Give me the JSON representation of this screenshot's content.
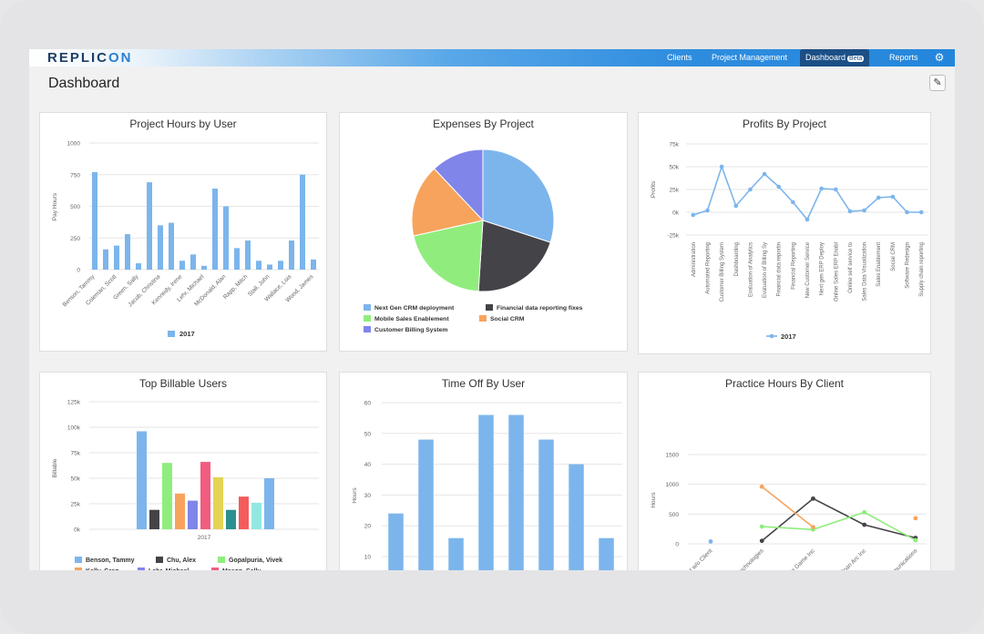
{
  "app": {
    "logo_left": "REPLIC",
    "logo_right": "ON",
    "nav": {
      "clients": "Clients",
      "project_management": "Project Management",
      "dashboard": "Dashboard",
      "dashboard_badge": "Beta",
      "reports": "Reports"
    },
    "page_title": "Dashboard",
    "colors": {
      "bar_blue": "#7cb5ec",
      "topbar": "#2486db"
    }
  },
  "panels": {
    "project_hours": {
      "title": "Project Hours by User"
    },
    "expenses": {
      "title": "Expenses By Project"
    },
    "profits": {
      "title": "Profits By Project"
    },
    "billable": {
      "title": "Top Billable Users"
    },
    "timeoff": {
      "title": "Time Off By User"
    },
    "practice": {
      "title": "Practice Hours By Client"
    }
  },
  "chart_data": [
    {
      "id": "project_hours",
      "type": "bar",
      "title": "Project Hours by User",
      "ylabel": "Pay Hours",
      "ylim": [
        0,
        1000
      ],
      "yticks": [
        "0",
        "250",
        "500",
        "750",
        "1000"
      ],
      "categories": [
        "Benson, Tammy",
        "",
        "Coleman, Scott",
        "",
        "Green, Sally",
        "",
        "Jacob, Christina",
        "",
        "Kennedy, Irene",
        "",
        "Lehr, Michael",
        "",
        "McDonald, Alan",
        "",
        "Rapp, Mitch",
        "",
        "Stall, John",
        "",
        "Wallace, Lois",
        "",
        "Wood, James"
      ],
      "x_labels": [
        "Benson, Tammy",
        "Coleman, Scott",
        "Green, Sally",
        "Jacob, Christina",
        "Kennedy, Irene",
        "Lehr, Michael",
        "McDonald, Alan",
        "Rapp, Mitch",
        "Stall, John",
        "Wallace, Lois",
        "Wood, James"
      ],
      "series": [
        {
          "name": "2017",
          "values": [
            770,
            160,
            190,
            280,
            50,
            690,
            350,
            370,
            70,
            120,
            30,
            640,
            500,
            170,
            230,
            70,
            40,
            70,
            230,
            750,
            80
          ]
        }
      ],
      "legend": [
        "2017"
      ]
    },
    {
      "id": "expenses",
      "type": "pie",
      "title": "Expenses By Project",
      "slices": [
        {
          "name": "Next Gen CRM deployment",
          "value": 30,
          "color": "#7cb5ec"
        },
        {
          "name": "Financial data reporting fixes",
          "value": 21,
          "color": "#434348"
        },
        {
          "name": "Mobile Sales Enablement",
          "value": 20.5,
          "color": "#90ed7d"
        },
        {
          "name": "Social CRM",
          "value": 16.5,
          "color": "#f7a35c"
        },
        {
          "name": "Customer Billing System",
          "value": 12,
          "color": "#8085e9"
        }
      ]
    },
    {
      "id": "profits",
      "type": "line",
      "title": "Profits By Project",
      "ylabel": "Profits",
      "ylim": [
        -25000,
        75000
      ],
      "yticks": [
        "-25k",
        "0k",
        "25k",
        "50k",
        "75k"
      ],
      "categories": [
        "Administration",
        "Automated Reporting",
        "Customer Billing System",
        "Dashboarding",
        "Evaluation of Analytics",
        "Evaluation of Billing Sy",
        "Financial data reportin",
        "Financial Reporting",
        "New Customer Service",
        "Next gen ERP Deploy",
        "Online Sales ERP Enabl",
        "Online self service to",
        "Sales Data Visualization",
        "Sales Enablement",
        "Social CRM",
        "Software Redesign",
        "Supply chain reporting"
      ],
      "series": [
        {
          "name": "2017",
          "values": [
            -3000,
            2000,
            50000,
            7000,
            25000,
            42000,
            28000,
            11000,
            -8000,
            26000,
            25000,
            1000,
            2000,
            16000,
            17000,
            0,
            0
          ]
        }
      ],
      "legend": [
        "2017"
      ]
    },
    {
      "id": "billable",
      "type": "bar",
      "title": "Top Billable Users",
      "ylabel": "Billable",
      "ylim": [
        0,
        125000
      ],
      "yticks": [
        "0k",
        "25k",
        "50k",
        "75k",
        "100k",
        "125k"
      ],
      "categories": [
        "2017"
      ],
      "series": [
        {
          "name": "Benson, Tammy",
          "value": 96000,
          "color": "#7cb5ec"
        },
        {
          "name": "Chu, Alex",
          "value": 19000,
          "color": "#434348"
        },
        {
          "name": "Gopalpuria, Vivek",
          "value": 65000,
          "color": "#90ed7d"
        },
        {
          "name": "Kelly, Greg",
          "value": 35000,
          "color": "#f7a35c"
        },
        {
          "name": "Lehr, Michael",
          "value": 28000,
          "color": "#8085e9"
        },
        {
          "name": "Mason, Sally",
          "value": 66000,
          "color": "#f15c80"
        },
        {
          "name": "",
          "value": 51000,
          "color": "#e4d354"
        },
        {
          "name": "",
          "value": 19000,
          "color": "#2b908f"
        },
        {
          "name": "",
          "value": 32000,
          "color": "#f45b5b"
        },
        {
          "name": "",
          "value": 26000,
          "color": "#91e8e1"
        },
        {
          "name": "",
          "value": 50000,
          "color": "#7cb5ec"
        }
      ],
      "legend_visible": [
        "Benson, Tammy",
        "Chu, Alex",
        "Gopalpuria, Vivek",
        "Kelly, Greg",
        "Lehr, Michael",
        "Mason, Sally"
      ]
    },
    {
      "id": "timeoff",
      "type": "bar",
      "title": "Time Off By User",
      "ylabel": "Hours",
      "ylim": [
        0,
        60
      ],
      "yticks": [
        "10",
        "20",
        "30",
        "40",
        "50",
        "60"
      ],
      "series": [
        {
          "values": [
            24,
            48,
            16,
            56,
            56,
            48,
            40,
            16
          ]
        }
      ]
    },
    {
      "id": "practice",
      "type": "line",
      "title": "Practice Hours By Client",
      "ylabel": "Hours",
      "ylim": [
        0,
        1500
      ],
      "yticks": [
        "0",
        "500",
        "1000",
        "1500"
      ],
      "categories": [
        "No Client, Project w/o Client",
        "Advantage Technologies",
        "Big Game Inc",
        "Joan Arc Inc",
        "Xo Xo Communications"
      ],
      "series": [
        {
          "color": "#7cb5ec",
          "values": [
            40,
            null,
            null,
            null,
            null
          ]
        },
        {
          "color": "#434348",
          "values": [
            null,
            50,
            760,
            320,
            100
          ]
        },
        {
          "color": "#90ed7d",
          "values": [
            null,
            290,
            240,
            530,
            60
          ]
        },
        {
          "color": "#f7a35c",
          "values": [
            null,
            960,
            280,
            null,
            430
          ]
        }
      ]
    }
  ]
}
